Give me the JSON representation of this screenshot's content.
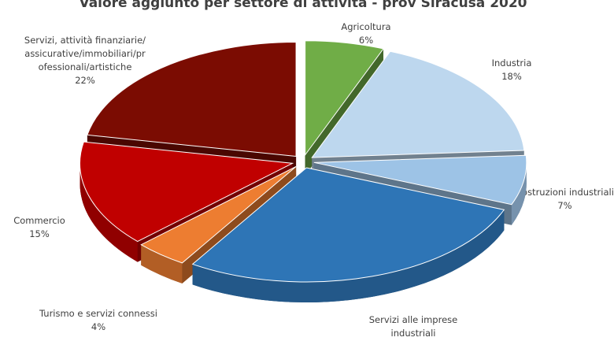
{
  "chart_data": {
    "type": "pie3d",
    "title": "Valore aggiunto per settore di attività - prov Siracusa 2020",
    "categories": [
      "Agricoltura",
      "Industria",
      "Costruzioni industriali",
      "Servizi alle imprese industriali",
      "Turismo e servizi connessi",
      "Commercio",
      "Servizi, attività finanziarie/assicurative/immobiliari/professionali/artistiche"
    ],
    "values": [
      6,
      18,
      7,
      28,
      4,
      15,
      22
    ],
    "value_labels": [
      "6%",
      "18%",
      "7%",
      null,
      "4%",
      "15%",
      "22%"
    ],
    "colors": [
      "#70ad47",
      "#bdd7ee",
      "#9dc3e6",
      "#2e75b6",
      "#ed7d31",
      "#c00000",
      "#7b0c02"
    ]
  }
}
